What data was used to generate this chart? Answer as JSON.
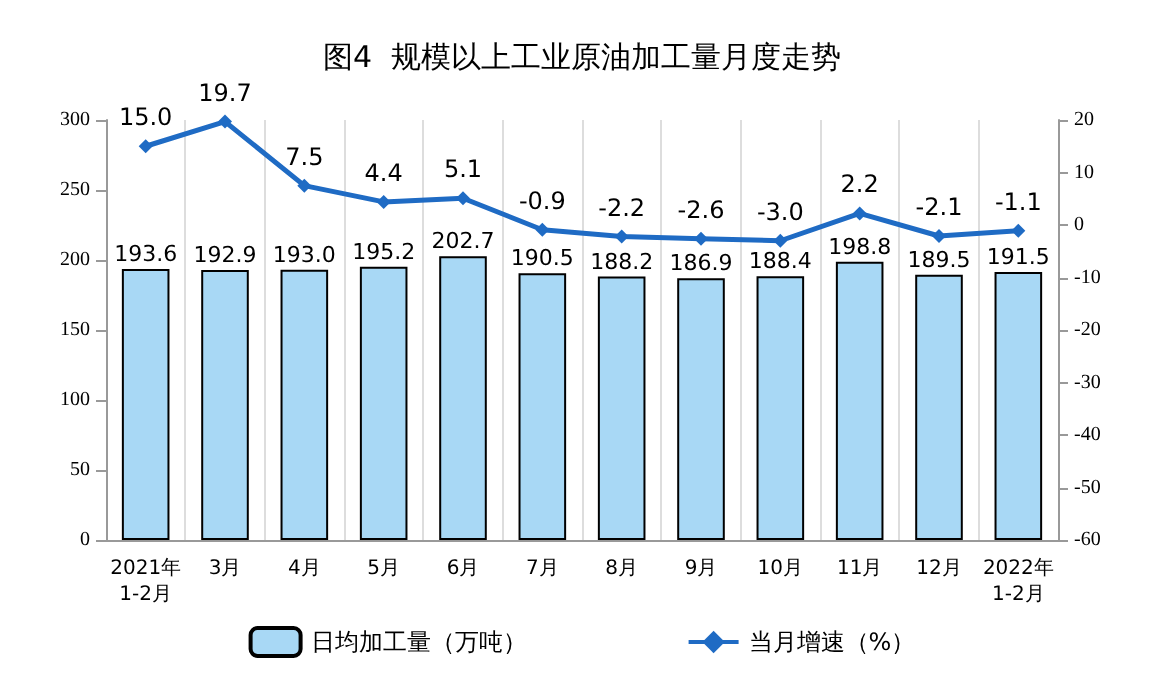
{
  "chart_data": {
    "type": "bar",
    "title": "图4  规模以上工业原油加工量月度走势",
    "categories": [
      "2021年\n1-2月",
      "3月",
      "4月",
      "5月",
      "6月",
      "7月",
      "8月",
      "9月",
      "10月",
      "11月",
      "12月",
      "2022年\n1-2月"
    ],
    "series": [
      {
        "name": "日均加工量（万吨）",
        "color": "#a8d8f5",
        "values": [
          193.6,
          192.9,
          193.0,
          195.2,
          202.7,
          190.5,
          188.2,
          186.9,
          188.4,
          198.8,
          189.5,
          191.5
        ],
        "value_labels": [
          "193.6",
          "192.9",
          "193.0",
          "195.2",
          "202.7",
          "190.5",
          "188.2",
          "186.9",
          "188.4",
          "198.8",
          "189.5",
          "191.5"
        ]
      },
      {
        "name": "当月增速（%）",
        "type": "line",
        "axis": "y2",
        "color": "#1f6bc4",
        "values": [
          15.0,
          19.7,
          7.5,
          4.4,
          5.1,
          -0.9,
          -2.2,
          -2.6,
          -3.0,
          2.2,
          -2.1,
          -1.1
        ],
        "value_labels": [
          "15.0",
          "19.7",
          "7.5",
          "4.4",
          "5.1",
          "-0.9",
          "-2.2",
          "-2.6",
          "-3.0",
          "2.2",
          "-2.1",
          "-1.1"
        ]
      }
    ],
    "ylim": [
      0,
      300
    ],
    "yticks": [
      0,
      50,
      100,
      150,
      200,
      250,
      300
    ],
    "y2lim": [
      -60,
      20
    ],
    "y2ticks": [
      -60,
      -50,
      -40,
      -30,
      -20,
      -10,
      0,
      10,
      20
    ],
    "grid": "x",
    "legend": "bottom",
    "marker": "diamond",
    "line_style": "solid"
  }
}
